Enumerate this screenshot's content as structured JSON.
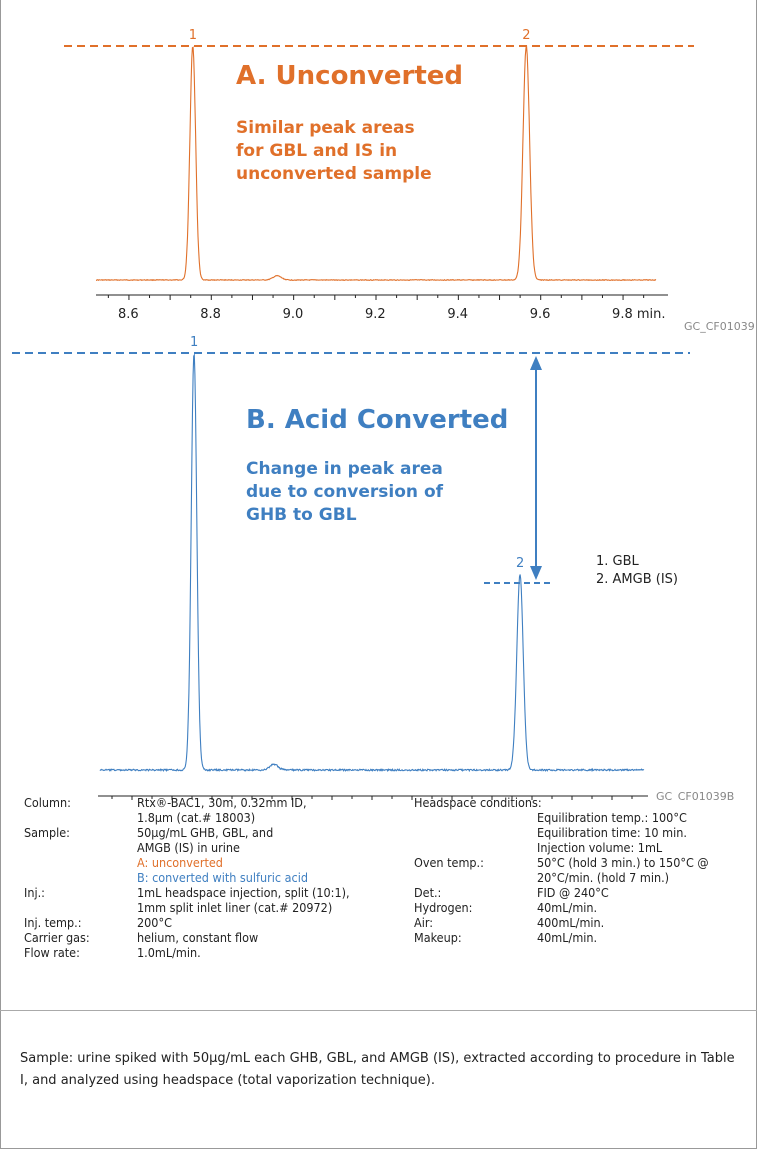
{
  "chart_data": [
    {
      "type": "line",
      "panel": "A",
      "title": "A. Unconverted",
      "annotation": "Similar peak areas for GBL and IS in unconverted sample",
      "annotation_lines": [
        "Similar peak areas",
        "for GBL and IS in",
        "unconverted sample"
      ],
      "figure_id": "GC_CF01039",
      "color": "#e0702a",
      "xlim": [
        8.52,
        9.88
      ],
      "x_ticks": [
        "8.6",
        "8.8",
        "9.0",
        "9.2",
        "9.4",
        "9.6",
        "9.8 min."
      ],
      "x_tick_values": [
        8.6,
        8.8,
        9.0,
        9.2,
        9.4,
        9.6,
        9.8
      ],
      "peaks": [
        {
          "label": "1",
          "x": 8.755,
          "height": 1.0,
          "sigma": 0.007
        },
        {
          "label": "2",
          "x": 9.565,
          "height": 1.0,
          "sigma": 0.008
        },
        {
          "label": "",
          "x": 8.96,
          "height": 0.018,
          "sigma": 0.01
        }
      ]
    },
    {
      "type": "line",
      "panel": "B",
      "title": "B. Acid Converted",
      "annotation": "Change in peak area due to conversion of GHB to GBL",
      "annotation_lines": [
        "Change in peak area",
        "due to conversion of",
        "GHB to GBL"
      ],
      "figure_id": "GC_CF01039B",
      "color": "#3f7fc1",
      "xlim": [
        8.52,
        9.88
      ],
      "x_ticks": [
        "8.6",
        "8.8",
        "9.0",
        "9.2",
        "9.4",
        "9.6",
        "9.8 min."
      ],
      "x_tick_values": [
        8.6,
        8.8,
        9.0,
        9.2,
        9.4,
        9.6,
        9.8
      ],
      "peaks": [
        {
          "label": "1",
          "x": 8.755,
          "height": 1.0,
          "sigma": 0.007
        },
        {
          "label": "2",
          "x": 9.57,
          "height": 0.47,
          "sigma": 0.008
        },
        {
          "label": "",
          "x": 8.955,
          "height": 0.014,
          "sigma": 0.01
        }
      ],
      "legend": [
        "1. GBL",
        "2. AMGB (IS)"
      ]
    }
  ],
  "conditions_left": [
    {
      "label": "Column:",
      "lines": [
        "Rtx®-BAC1, 30m, 0.32mm ID,",
        "1.8µm (cat.# 18003)"
      ]
    },
    {
      "label": "Sample:",
      "lines": [
        "50µg/mL GHB, GBL, and",
        "AMGB (IS) in urine"
      ]
    },
    {
      "label": "",
      "lines": [
        "A: unconverted"
      ],
      "color": "orange"
    },
    {
      "label": "",
      "lines": [
        "B: converted with sulfuric acid"
      ],
      "color": "blue"
    },
    {
      "label": "Inj.:",
      "lines": [
        "1mL headspace injection, split (10:1),",
        "1mm split inlet liner (cat.# 20972)"
      ]
    },
    {
      "label": "Inj. temp.:",
      "lines": [
        "200°C"
      ]
    },
    {
      "label": "Carrier gas:",
      "lines": [
        "helium, constant flow"
      ]
    },
    {
      "label": "Flow rate:",
      "lines": [
        "1.0mL/min."
      ]
    }
  ],
  "conditions_right": {
    "heading": "Headspace conditions:",
    "headspace": [
      "Equilibration temp.: 100°C",
      "Equilibration time: 10 min.",
      "Injection volume: 1mL"
    ],
    "rows": [
      {
        "label": "Oven temp.:",
        "lines": [
          "50°C (hold 3 min.) to 150°C @",
          "20°C/min. (hold 7 min.)"
        ]
      },
      {
        "label": "Det.:",
        "lines": [
          "FID @ 240°C"
        ]
      },
      {
        "label": "Hydrogen:",
        "lines": [
          "40mL/min."
        ]
      },
      {
        "label": "Air:",
        "lines": [
          "400mL/min."
        ]
      },
      {
        "label": "Makeup:",
        "lines": [
          "40mL/min."
        ]
      }
    ]
  },
  "footnote": "Sample: urine spiked with 50µg/mL each GHB, GBL, and AMGB (IS), extracted according to procedure in Table I, and analyzed using headspace (total vaporization technique)."
}
